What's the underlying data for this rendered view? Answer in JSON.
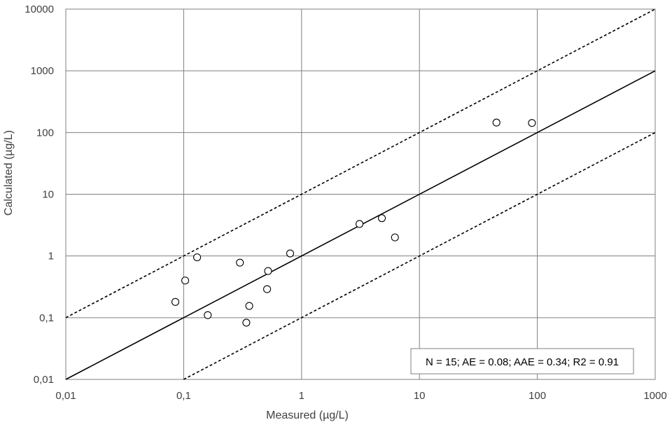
{
  "chart_data": {
    "type": "scatter",
    "xlabel": "Measured (µg/L)",
    "ylabel": "Calculated (µg/L)",
    "xscale": "log",
    "yscale": "log",
    "xlim": [
      0.01,
      1000
    ],
    "ylim": [
      0.01,
      10000
    ],
    "x_ticks": [
      0.01,
      0.1,
      1,
      10,
      100,
      1000
    ],
    "x_tick_labels": [
      "0,01",
      "0,1",
      "1",
      "10",
      "100",
      "1000"
    ],
    "y_ticks": [
      0.01,
      0.1,
      1,
      10,
      100,
      1000,
      10000
    ],
    "y_tick_labels": [
      "0,01",
      "0,1",
      "1",
      "10",
      "100",
      "1000",
      "10000"
    ],
    "grid": true,
    "annotation": "N = 15; AE = 0.08; AAE = 0.34; R2 = 0.91",
    "reference_lines": [
      {
        "style": "solid",
        "factor": 1
      },
      {
        "style": "dashed",
        "factor": 10
      },
      {
        "style": "dashed",
        "factor": 0.1
      }
    ],
    "points": [
      {
        "x": 0.085,
        "y": 0.18
      },
      {
        "x": 0.103,
        "y": 0.4
      },
      {
        "x": 0.13,
        "y": 0.95
      },
      {
        "x": 0.16,
        "y": 0.11
      },
      {
        "x": 0.3,
        "y": 0.78
      },
      {
        "x": 0.34,
        "y": 0.083
      },
      {
        "x": 0.36,
        "y": 0.155
      },
      {
        "x": 0.51,
        "y": 0.29
      },
      {
        "x": 0.52,
        "y": 0.57
      },
      {
        "x": 0.8,
        "y": 1.1
      },
      {
        "x": 3.1,
        "y": 3.3
      },
      {
        "x": 4.8,
        "y": 4.1
      },
      {
        "x": 6.2,
        "y": 2.0
      },
      {
        "x": 45,
        "y": 145
      },
      {
        "x": 90,
        "y": 143
      }
    ]
  }
}
